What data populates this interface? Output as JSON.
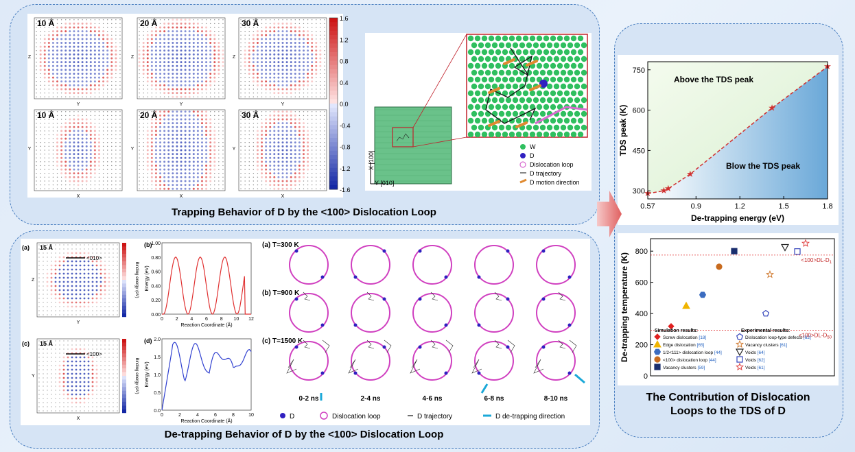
{
  "top": {
    "caption": "Trapping Behavior of D by the <100> Dislocation Loop",
    "maps_row1": [
      "10 Å",
      "20 Å",
      "30 Å"
    ],
    "maps_row2": [
      "10 Å",
      "20 Å",
      "30 Å"
    ],
    "axis_row1": {
      "x": "Y",
      "y": "Z"
    },
    "axis_row2": {
      "x": "X",
      "y": "Y"
    },
    "colorbar_ticks": [
      "1.6",
      "1.2",
      "0.8",
      "0.4",
      "0.0",
      "-0.4",
      "-0.8",
      "-1.2",
      "-1.6"
    ],
    "axes3d": {
      "x": "X [100]",
      "y": "Y [010]"
    },
    "legend": [
      "W",
      "D",
      "Dislocation loop",
      "D trajectory",
      "D motion direction"
    ]
  },
  "bottom": {
    "caption": "De-trapping Behavior of D by the <100> Dislocation Loop",
    "panel_a": {
      "tag": "(a)",
      "label": "15 Å",
      "dir": "<010>",
      "xlabel": "Y",
      "ylabel": "Z",
      "cblabel": "Binding energy (eV)"
    },
    "panel_c": {
      "tag": "(c)",
      "label": "15 Å",
      "dir": "<100>",
      "xlabel": "X",
      "ylabel": "Y",
      "cblabel": "Binding energy (eV)"
    },
    "panel_b": {
      "tag": "(b)",
      "xlabel": "Reaction Coordinate (Å)",
      "ylabel": "Energy (eV)",
      "yticks": [
        "1.00",
        "0.80",
        "0.60",
        "0.40",
        "0.20",
        "0.00"
      ],
      "xticks": [
        "0",
        "2",
        "4",
        "6",
        "8",
        "10",
        "12"
      ]
    },
    "panel_d": {
      "tag": "(d)",
      "xlabel": "Reaction Coordinate (Å)",
      "ylabel": "Energy (eV)",
      "yticks": [
        "2.0",
        "1.5",
        "1.0",
        "0.5",
        "0.0"
      ],
      "xticks": [
        "0",
        "2",
        "4",
        "6",
        "8",
        "10"
      ]
    },
    "temps": [
      "(a) T=300 K",
      "(b) T=900 K",
      "(c) T=1500 K"
    ],
    "times": [
      "0-2 ns",
      "2-4 ns",
      "4-6 ns",
      "6-8 ns",
      "8-10 ns"
    ],
    "legend": [
      "D",
      "Dislocation loop",
      "D trajectory",
      "D de-trapping direction"
    ]
  },
  "right": {
    "caption_line1": "The Contribution of Dislocation",
    "caption_line2": "Loops to the TDS of D"
  },
  "chart_data": [
    {
      "type": "scatter",
      "title": "",
      "xlabel": "De-trapping energy (eV)",
      "ylabel": "TDS peak (K)",
      "xlim": [
        0.57,
        1.8
      ],
      "ylim": [
        270,
        780
      ],
      "xticks": [
        "0.57",
        "0.9",
        "1.2",
        "1.5",
        "1.8"
      ],
      "yticks": [
        "300",
        "450",
        "600",
        "750"
      ],
      "x": [
        0.57,
        0.68,
        0.71,
        0.86,
        1.42,
        1.8
      ],
      "y": [
        290,
        300,
        308,
        362,
        608,
        762
      ],
      "annotations": [
        "Above the TDS peak",
        "Blow the TDS peak"
      ]
    },
    {
      "type": "scatter",
      "xlabel": "",
      "ylabel": "De-trapping temperature (K)",
      "ylim": [
        0,
        880
      ],
      "yticks": [
        "0",
        "200",
        "400",
        "600",
        "800"
      ],
      "reference_lines": [
        {
          "label": "<100>DL-D",
          "sub": "1",
          "value": 775
        },
        {
          "label": "<100>DL-D",
          "sub": "50",
          "value": 292
        }
      ],
      "sim_title": "Simulation results:",
      "exp_title": "Experimental results:",
      "series": [
        {
          "name": "Screw dislocation",
          "ref": "[18]",
          "color": "#e02020",
          "marker": "diamond",
          "filled": true,
          "values": [
            318
          ]
        },
        {
          "name": "Edge dislocation",
          "ref": "[65]",
          "color": "#f0b400",
          "marker": "triangle",
          "filled": true,
          "values": [
            450
          ]
        },
        {
          "name": "1/2<111> dislocation loop",
          "ref": "[44]",
          "color": "#3b6cc0",
          "marker": "hexagon",
          "filled": true,
          "values": [
            520
          ]
        },
        {
          "name": "<100> dislocation loop",
          "ref": "[44]",
          "color": "#c86b1e",
          "marker": "circle",
          "filled": true,
          "values": [
            700
          ]
        },
        {
          "name": "Vacancy clusters",
          "ref": "[59]",
          "color": "#1a2e6e",
          "marker": "square",
          "filled": true,
          "values": [
            800
          ]
        },
        {
          "name": "Dislocation loop-type defects",
          "ref": "[62]",
          "color": "#3344bb",
          "marker": "pentagon",
          "filled": false,
          "values": [
            400
          ]
        },
        {
          "name": "Vacancy clusters",
          "ref": "[61]",
          "color": "#d07a30",
          "marker": "star",
          "filled": false,
          "values": [
            650
          ]
        },
        {
          "name": "Voids",
          "ref": "[64]",
          "color": "#222222",
          "marker": "triangle-down",
          "filled": false,
          "values": [
            825
          ]
        },
        {
          "name": "Voids",
          "ref": "[62]",
          "color": "#3344bb",
          "marker": "square",
          "filled": false,
          "values": [
            798
          ]
        },
        {
          "name": "Voids",
          "ref": "[61]",
          "color": "#e04040",
          "marker": "star",
          "filled": false,
          "values": [
            850
          ]
        }
      ]
    }
  ]
}
